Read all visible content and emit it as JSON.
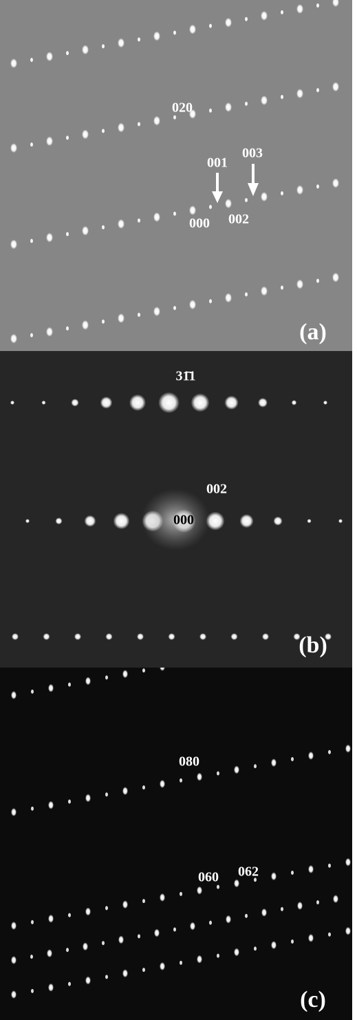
{
  "panels": [
    {
      "label": "(a)",
      "annotations": [
        "020",
        "001",
        "003",
        "000",
        "002"
      ]
    },
    {
      "label": "(b)",
      "annotations": [
        "31̄1",
        "002",
        "000"
      ]
    },
    {
      "label": "(c)",
      "annotations": [
        "080",
        "060",
        "062"
      ]
    }
  ]
}
